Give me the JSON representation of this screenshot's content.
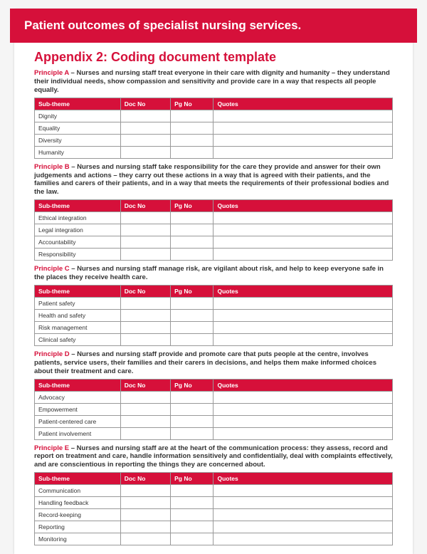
{
  "banner_title": "Patient outcomes of specialist nursing services.",
  "appendix_title": "Appendix 2: Coding document template",
  "columns": [
    "Sub-theme",
    "Doc No",
    "Pg No",
    "Quotes"
  ],
  "colors": {
    "brand": "#d6103a",
    "text": "#333333",
    "border": "#999999",
    "page_bg": "#ffffff",
    "body_bg": "#f5f5f5"
  },
  "typography": {
    "banner_fontsize": 17,
    "appendix_fontsize": 18,
    "blurb_fontsize": 9.5,
    "table_fontsize": 8.5,
    "font_family": "Arial"
  },
  "principles": [
    {
      "name": "Principle A",
      "text": " – Nurses and nursing staff treat everyone in their care with dignity and humanity – they understand their individual needs, show compassion and sensitivity and provide care in a way that respects all people equally.",
      "rows": [
        "Dignity",
        "Equality",
        "Diversity",
        "Humanity"
      ]
    },
    {
      "name": "Principle B",
      "text": " – Nurses and nursing staff take responsibility for the care they provide and answer for their own judgements and actions – they carry out these actions in a way that is agreed with their patients, and the families and carers of their patients, and in a way that meets the requirements of their professional bodies and the law.",
      "rows": [
        "Ethical integration",
        "Legal integration",
        "Accountability",
        "Responsibility"
      ]
    },
    {
      "name": "Principle C",
      "text": " – Nurses and nursing staff manage risk, are vigilant about risk, and help to keep everyone safe in the places they receive health care.",
      "rows": [
        "Patient safety",
        "Health and safety",
        "Risk management",
        "Clinical safety"
      ]
    },
    {
      "name": "Principle D",
      "text": " – Nurses and nursing staff provide and promote care that puts people at the centre, involves patients, service users, their families and their carers in decisions, and helps them make informed choices about their treatment and care.",
      "rows": [
        "Advocacy",
        "Empowerment",
        "Patient-centered care",
        "Patient involvement"
      ]
    },
    {
      "name": "Principle E",
      "text": " – Nurses and nursing staff are at the heart of the communication process: they assess, record and report on treatment and care, handle information sensitively and confidentially, deal with complaints effectively, and are conscientious in reporting the things they are concerned about.",
      "rows": [
        "Communication",
        "Handling feedback",
        "Record-keeping",
        "Reporting",
        "Monitoring"
      ]
    }
  ]
}
